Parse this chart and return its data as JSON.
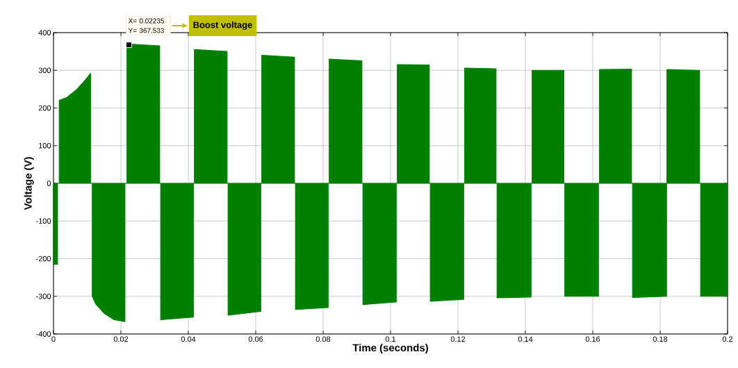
{
  "chart_data": {
    "type": "area",
    "xlabel": "Time (seconds)",
    "ylabel": "Voltage (V)",
    "xlim": [
      0,
      0.2
    ],
    "ylim": [
      -400,
      400
    ],
    "xticks": [
      0,
      0.02,
      0.04,
      0.06,
      0.08,
      0.1,
      0.12,
      0.14,
      0.16,
      0.18,
      0.2
    ],
    "yticks": [
      -400,
      -300,
      -200,
      -100,
      0,
      100,
      200,
      300,
      400
    ],
    "grid": true,
    "annotations": [
      {
        "text": "X= 0.02235 Y= 367.533",
        "x": 0.02235,
        "y": 367.533
      },
      "Boost voltage"
    ],
    "series": [
      {
        "color": "#007f00",
        "x": [
          0,
          0,
          0.0012,
          0.0012,
          0.0017,
          0.0017,
          0.004,
          0.007,
          0.0095,
          0.011,
          0.011,
          0.0115,
          0.0115,
          0.0125,
          0.015,
          0.018,
          0.0212,
          0.0212,
          0.0218,
          0.0218,
          0.0315,
          0.0315,
          0.0318,
          0.0318,
          0.0415,
          0.0415,
          0.0418,
          0.0418,
          0.0515,
          0.0515,
          0.0518,
          0.0518,
          0.0615,
          0.0615,
          0.0618,
          0.0618,
          0.0715,
          0.0715,
          0.0718,
          0.0718,
          0.0815,
          0.0815,
          0.0818,
          0.0818,
          0.0915,
          0.0915,
          0.0918,
          0.0918,
          0.1017,
          0.1017,
          0.102,
          0.102,
          0.1115,
          0.1115,
          0.1118,
          0.1118,
          0.1217,
          0.1217,
          0.122,
          0.122,
          0.1313,
          0.1313,
          0.1316,
          0.1316,
          0.1417,
          0.1417,
          0.142,
          0.142,
          0.1514,
          0.1514,
          0.1517,
          0.1517,
          0.1617,
          0.1617,
          0.162,
          0.162,
          0.1715,
          0.1715,
          0.1718,
          0.1718,
          0.1819,
          0.1819,
          0.182,
          0.182,
          0.1917,
          0.1917,
          0.192,
          0.192,
          0.2,
          0.2
        ],
        "values": [
          0,
          -215,
          -215,
          0,
          0,
          220,
          228,
          250,
          275,
          292,
          0,
          0,
          -300,
          -320,
          -345,
          -362,
          -367,
          0,
          0,
          370,
          365,
          0,
          0,
          -362,
          -355,
          0,
          0,
          355,
          350,
          0,
          0,
          -350,
          -340,
          0,
          0,
          340,
          335,
          0,
          0,
          -335,
          -330,
          0,
          0,
          330,
          325,
          0,
          0,
          -322,
          -315,
          0,
          0,
          315,
          314,
          0,
          0,
          -313,
          -308,
          0,
          0,
          306,
          304,
          0,
          0,
          -304,
          -302,
          0,
          0,
          300,
          300,
          0,
          0,
          -300,
          -300,
          0,
          0,
          302,
          303,
          0,
          0,
          -303,
          -300,
          0,
          0,
          302,
          300,
          0,
          0,
          -300,
          -300,
          0
        ]
      }
    ]
  }
}
